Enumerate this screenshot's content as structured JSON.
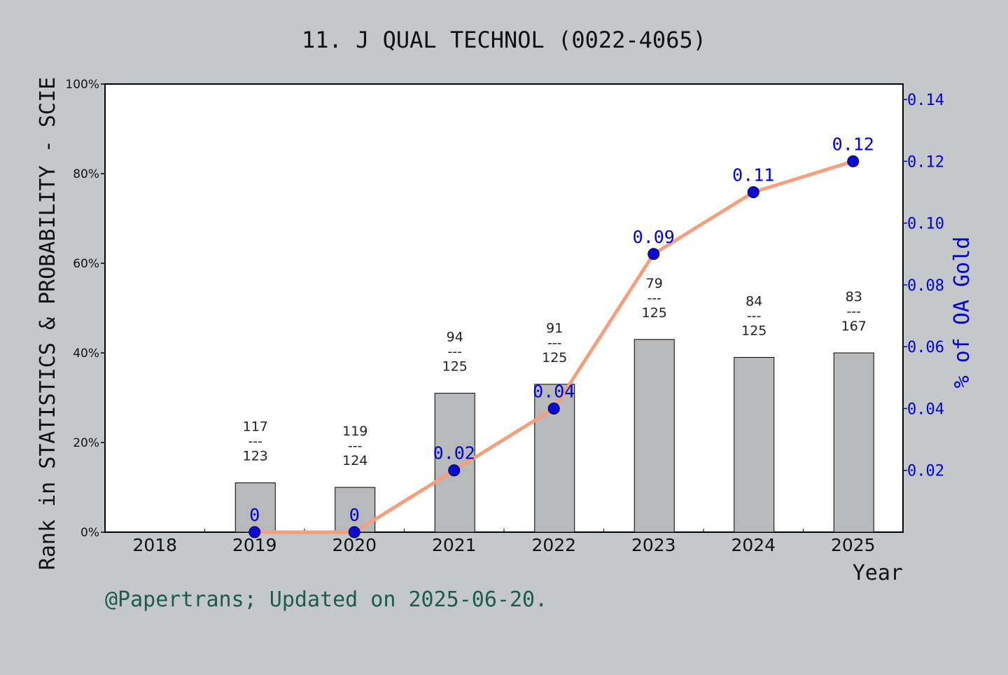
{
  "chart_data": {
    "type": "bar+line",
    "title": "11. J QUAL TECHNOL (0022-4065)",
    "xlabel": "Year",
    "ylabel_left": "Rank in STATISTICS & PROBABILITY - SCIE",
    "ylabel_right": "% of OA Gold",
    "footer": "@Papertrans; Updated on 2025-06-20.",
    "categories": [
      "2018",
      "2019",
      "2020",
      "2021",
      "2022",
      "2023",
      "2024",
      "2025"
    ],
    "left_axis": {
      "ylim": [
        0,
        100
      ],
      "ticks": [
        0,
        20,
        40,
        60,
        80,
        100
      ],
      "tick_labels": [
        "0%",
        "20%",
        "40%",
        "60%",
        "80%",
        "100%"
      ]
    },
    "right_axis": {
      "ylim": [
        0,
        0.145
      ],
      "ticks": [
        0.02,
        0.04,
        0.06,
        0.08,
        0.1,
        0.12,
        0.14
      ],
      "tick_labels": [
        "0.02",
        "0.04",
        "0.06",
        "0.08",
        "0.10",
        "0.12",
        "0.14"
      ]
    },
    "bars": [
      {
        "year": "2019",
        "value": 11,
        "rank": "117",
        "total": "123",
        "sep": "---"
      },
      {
        "year": "2020",
        "value": 10,
        "rank": "119",
        "total": "124",
        "sep": "---"
      },
      {
        "year": "2021",
        "value": 31,
        "rank": "94",
        "total": "125",
        "sep": "---"
      },
      {
        "year": "2022",
        "value": 33,
        "rank": "91",
        "total": "125",
        "sep": "---"
      },
      {
        "year": "2023",
        "value": 43,
        "rank": "79",
        "total": "125",
        "sep": "---"
      },
      {
        "year": "2024",
        "value": 39,
        "rank": "84",
        "total": "125",
        "sep": "---"
      },
      {
        "year": "2025",
        "value": 40,
        "rank": "83",
        "total": "167",
        "sep": "---"
      }
    ],
    "line": {
      "points": [
        {
          "year": "2019",
          "value": 0,
          "label": "0"
        },
        {
          "year": "2020",
          "value": 0,
          "label": "0"
        },
        {
          "year": "2021",
          "value": 0.02,
          "label": "0.02"
        },
        {
          "year": "2022",
          "value": 0.04,
          "label": "0.04"
        },
        {
          "year": "2023",
          "value": 0.09,
          "label": "0.09"
        },
        {
          "year": "2024",
          "value": 0.11,
          "label": "0.11"
        },
        {
          "year": "2025",
          "value": 0.12,
          "label": "0.12"
        }
      ]
    },
    "colors": {
      "background": "#c4c8cb",
      "plot": "#ffffff",
      "bar": "#b8b9bb",
      "line": "#f4a07e",
      "marker": "#0a0ad0",
      "right_axis": "#0000dd",
      "footer": "#1a5c50",
      "text": "#111111"
    },
    "grid": false
  }
}
